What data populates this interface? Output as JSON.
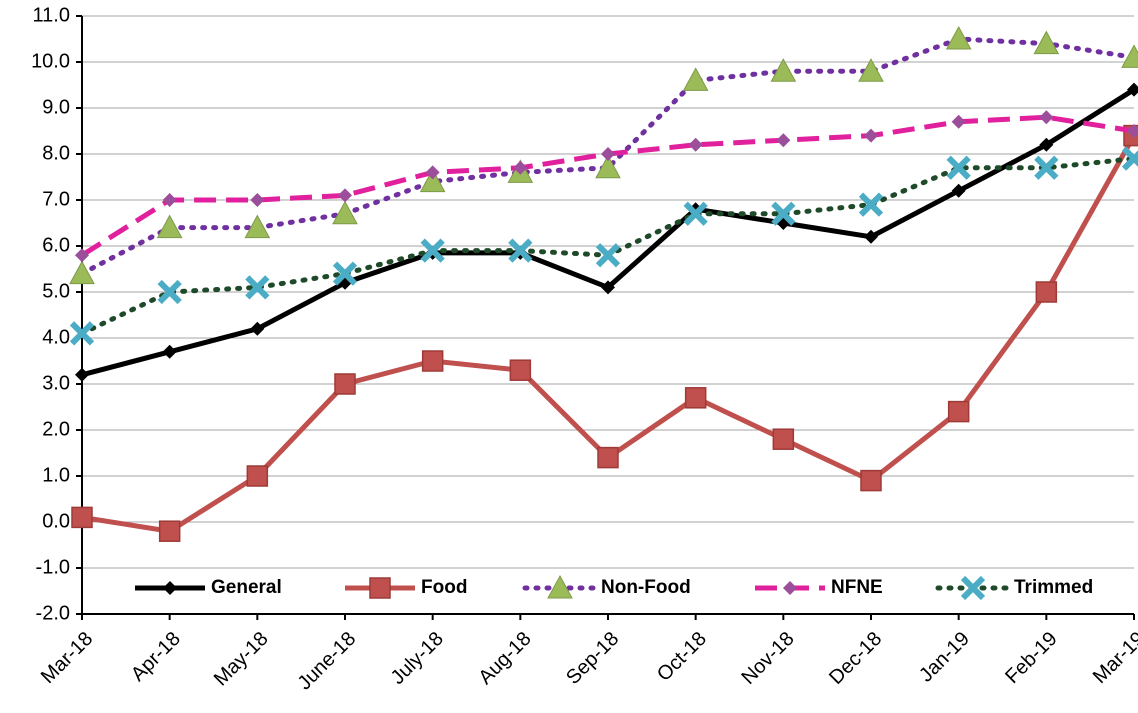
{
  "chart_data": {
    "type": "line",
    "categories": [
      "Mar-18",
      "Apr-18",
      "May-18",
      "June-18",
      "July-18",
      "Aug-18",
      "Sep-18",
      "Oct-18",
      "Nov-18",
      "Dec-18",
      "Jan-19",
      "Feb-19",
      "Mar-19"
    ],
    "series": [
      {
        "name": "General",
        "color": "#000000",
        "marker_color": "#000000",
        "marker": "diamond",
        "dash": "solid",
        "values": [
          3.2,
          3.7,
          4.2,
          5.2,
          5.85,
          5.85,
          5.1,
          6.8,
          6.5,
          6.2,
          7.2,
          8.2,
          9.4
        ]
      },
      {
        "name": "Food",
        "color": "#c0504d",
        "marker_color": "#c0504d",
        "marker": "square",
        "dash": "solid",
        "values": [
          0.1,
          -0.2,
          1.0,
          3.0,
          3.5,
          3.3,
          1.4,
          2.7,
          1.8,
          0.9,
          2.4,
          5.0,
          8.4
        ]
      },
      {
        "name": "Non-Food",
        "color": "#7030a0",
        "marker_color": "#9bbb59",
        "marker": "triangle",
        "dash": "dot",
        "values": [
          5.4,
          6.4,
          6.4,
          6.7,
          7.4,
          7.6,
          7.7,
          9.6,
          9.8,
          9.8,
          10.5,
          10.4,
          10.1
        ]
      },
      {
        "name": "NFNE",
        "color": "#e0209c",
        "marker_color": "#9b4f9b",
        "marker": "diamond",
        "dash": "dash",
        "values": [
          5.8,
          7.0,
          7.0,
          7.1,
          7.6,
          7.7,
          8.0,
          8.2,
          8.3,
          8.4,
          8.7,
          8.8,
          8.5
        ]
      },
      {
        "name": "Trimmed",
        "color": "#1e4a2a",
        "marker_color": "#4bacc6",
        "marker": "x",
        "dash": "dot",
        "values": [
          4.1,
          5.0,
          5.1,
          5.4,
          5.9,
          5.9,
          5.8,
          6.7,
          6.7,
          6.9,
          7.7,
          7.7,
          7.9
        ]
      }
    ],
    "ylim": [
      -2,
      11
    ],
    "yticks": [
      {
        "value": -2,
        "label": "-2.0"
      },
      {
        "value": -1,
        "label": "-1.0"
      },
      {
        "value": 0,
        "label": "0.0"
      },
      {
        "value": 1,
        "label": "1.0"
      },
      {
        "value": 2,
        "label": "2.0"
      },
      {
        "value": 3,
        "label": "3.0"
      },
      {
        "value": 4,
        "label": "4.0"
      },
      {
        "value": 5,
        "label": "5.0"
      },
      {
        "value": 6,
        "label": "6.0"
      },
      {
        "value": 7,
        "label": "7.0"
      },
      {
        "value": 8,
        "label": "8.0"
      },
      {
        "value": 9,
        "label": "9.0"
      },
      {
        "value": 10,
        "label": "10.0"
      },
      {
        "value": 11,
        "label": "11.0"
      }
    ],
    "grid": true,
    "legend": "bottom"
  }
}
